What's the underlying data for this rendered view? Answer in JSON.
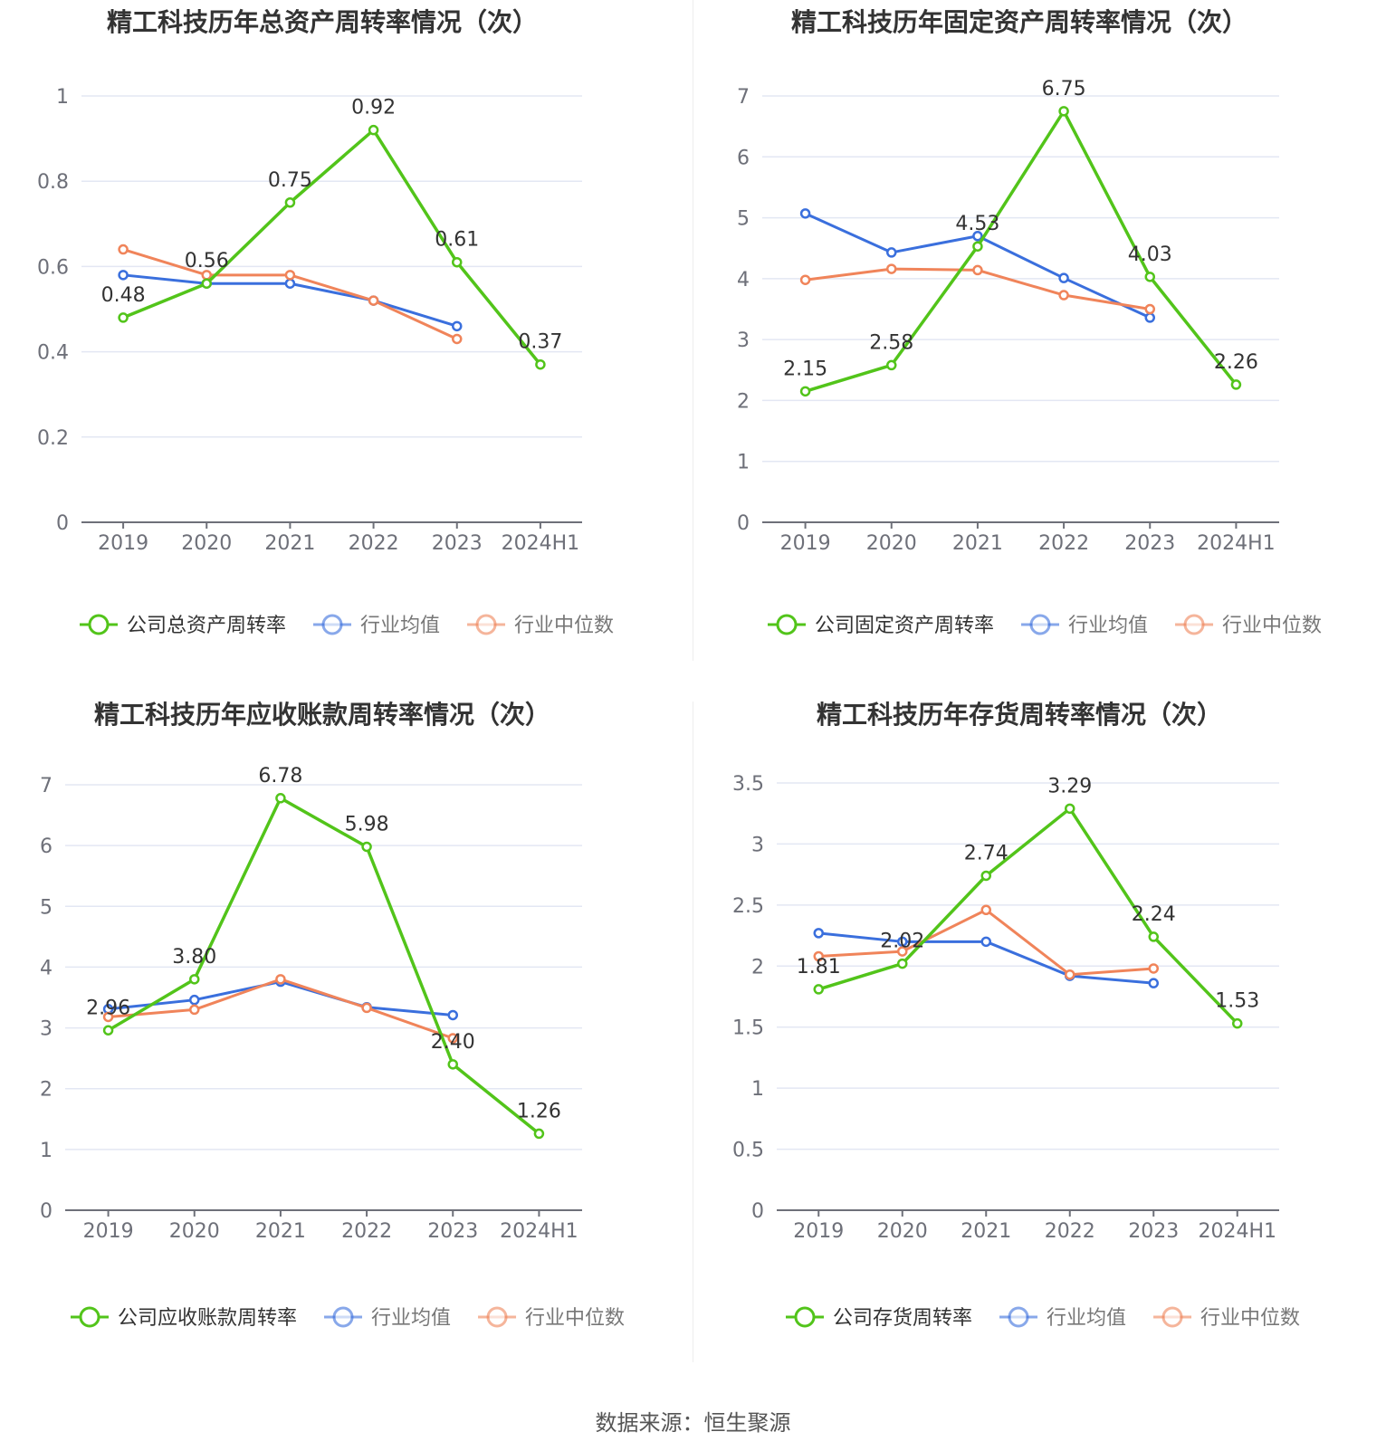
{
  "colors": {
    "company": "#52c41a",
    "avg": "#3a6fdd",
    "median": "#f0845a",
    "grid": "#e3e7f3",
    "axis": "#6e7079",
    "label": "#333333",
    "tick": "#6e7079"
  },
  "source": "数据来源：恒生聚源",
  "chart_data": [
    {
      "type": "line",
      "title": "精工科技历年总资产周转率情况（次）",
      "categories": [
        "2019",
        "2020",
        "2021",
        "2022",
        "2023",
        "2024H1"
      ],
      "ylim": [
        0,
        1
      ],
      "yticks": [
        "0",
        "0.2",
        "0.4",
        "0.6",
        "0.8",
        "1"
      ],
      "ytick_values": [
        0,
        0.2,
        0.4,
        0.6,
        0.8,
        1
      ],
      "series": [
        {
          "name": "公司总资产周转率",
          "role": "company",
          "values": [
            0.48,
            0.56,
            0.75,
            0.92,
            0.61,
            0.37
          ],
          "labels": [
            "0.48",
            "0.56",
            "0.75",
            "0.92",
            "0.61",
            "0.37"
          ]
        },
        {
          "name": "行业均值",
          "role": "avg",
          "values": [
            0.58,
            0.56,
            0.56,
            0.52,
            0.46,
            null
          ]
        },
        {
          "name": "行业中位数",
          "role": "median",
          "values": [
            0.64,
            0.58,
            0.58,
            0.52,
            0.43,
            null
          ]
        }
      ]
    },
    {
      "type": "line",
      "title": "精工科技历年固定资产周转率情况（次）",
      "categories": [
        "2019",
        "2020",
        "2021",
        "2022",
        "2023",
        "2024H1"
      ],
      "ylim": [
        0,
        7
      ],
      "yticks": [
        "0",
        "1",
        "2",
        "3",
        "4",
        "5",
        "6",
        "7"
      ],
      "ytick_values": [
        0,
        1,
        2,
        3,
        4,
        5,
        6,
        7
      ],
      "series": [
        {
          "name": "公司固定资产周转率",
          "role": "company",
          "values": [
            2.15,
            2.58,
            4.53,
            6.75,
            4.03,
            2.26
          ],
          "labels": [
            "2.15",
            "2.58",
            "4.53",
            "6.75",
            "4.03",
            "2.26"
          ]
        },
        {
          "name": "行业均值",
          "role": "avg",
          "values": [
            5.07,
            4.43,
            4.7,
            4.01,
            3.36,
            null
          ]
        },
        {
          "name": "行业中位数",
          "role": "median",
          "values": [
            3.98,
            4.16,
            4.14,
            3.73,
            3.5,
            null
          ]
        }
      ]
    },
    {
      "type": "line",
      "title": "精工科技历年应收账款周转率情况（次）",
      "categories": [
        "2019",
        "2020",
        "2021",
        "2022",
        "2023",
        "2024H1"
      ],
      "ylim": [
        0,
        7
      ],
      "yticks": [
        "0",
        "1",
        "2",
        "3",
        "4",
        "5",
        "6",
        "7"
      ],
      "ytick_values": [
        0,
        1,
        2,
        3,
        4,
        5,
        6,
        7
      ],
      "series": [
        {
          "name": "公司应收账款周转率",
          "role": "company",
          "values": [
            2.96,
            3.8,
            6.78,
            5.98,
            2.4,
            1.26
          ],
          "labels": [
            "2.96",
            "3.80",
            "6.78",
            "5.98",
            "2.40",
            "1.26"
          ]
        },
        {
          "name": "行业均值",
          "role": "avg",
          "values": [
            3.31,
            3.46,
            3.76,
            3.34,
            3.21,
            null
          ]
        },
        {
          "name": "行业中位数",
          "role": "median",
          "values": [
            3.18,
            3.3,
            3.8,
            3.33,
            2.83,
            null
          ]
        }
      ]
    },
    {
      "type": "line",
      "title": "精工科技历年存货周转率情况（次）",
      "categories": [
        "2019",
        "2020",
        "2021",
        "2022",
        "2023",
        "2024H1"
      ],
      "ylim": [
        0,
        3.5
      ],
      "yticks": [
        "0",
        "0.5",
        "1",
        "1.5",
        "2",
        "2.5",
        "3",
        "3.5"
      ],
      "ytick_values": [
        0,
        0.5,
        1,
        1.5,
        2,
        2.5,
        3,
        3.5
      ],
      "series": [
        {
          "name": "公司存货周转率",
          "role": "company",
          "values": [
            1.81,
            2.02,
            2.74,
            3.29,
            2.24,
            1.53
          ],
          "labels": [
            "1.81",
            "2.02",
            "2.74",
            "3.29",
            "2.24",
            "1.53"
          ]
        },
        {
          "name": "行业均值",
          "role": "avg",
          "values": [
            2.27,
            2.2,
            2.2,
            1.92,
            1.86,
            null
          ]
        },
        {
          "name": "行业中位数",
          "role": "median",
          "values": [
            2.08,
            2.12,
            2.46,
            1.93,
            1.98,
            null
          ]
        }
      ]
    }
  ]
}
